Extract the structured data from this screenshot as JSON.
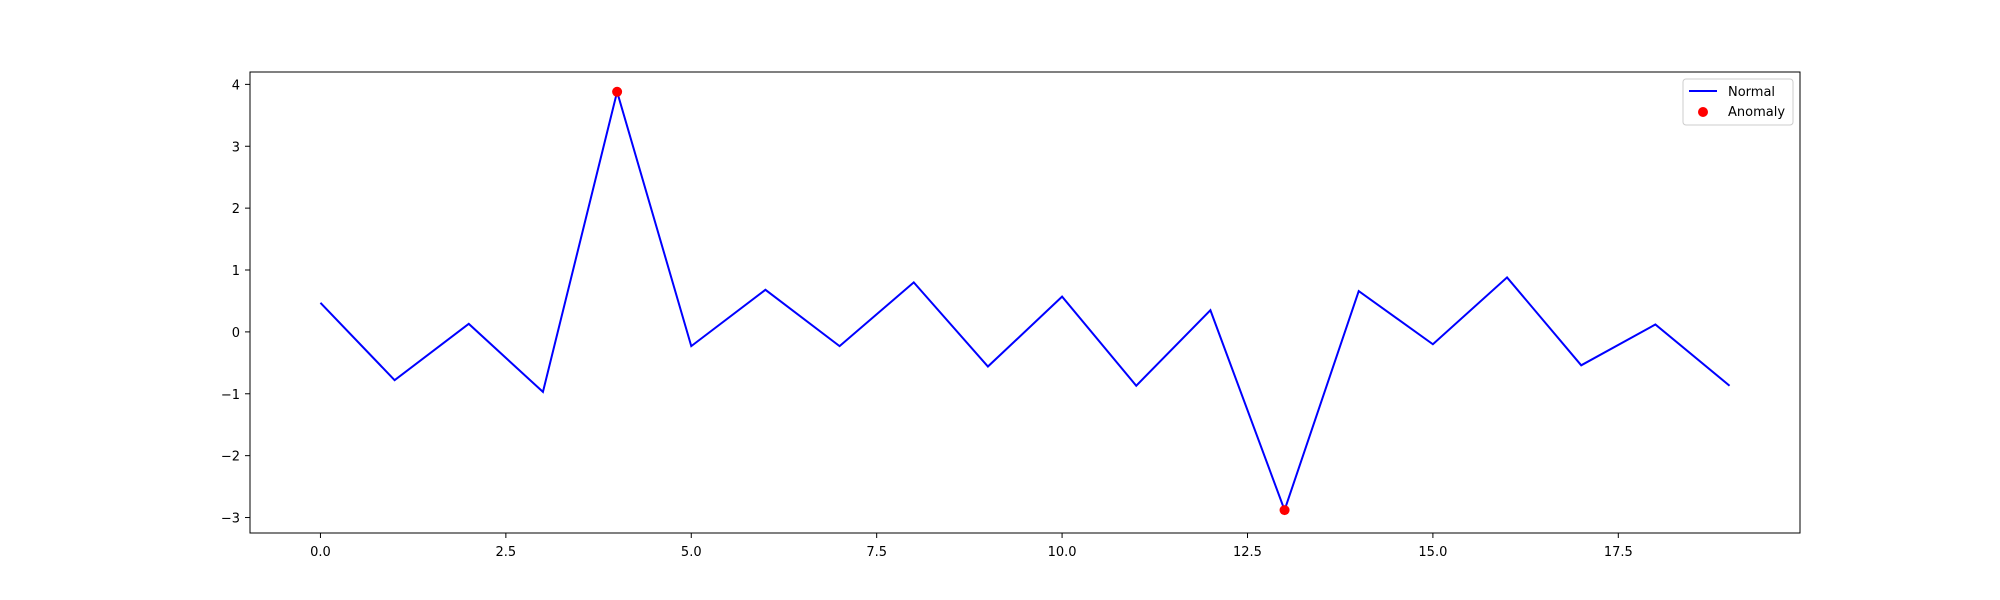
{
  "chart_data": {
    "type": "line",
    "title": "",
    "xlabel": "",
    "ylabel": "",
    "xlim": [
      -0.95,
      19.95
    ],
    "ylim": [
      -3.25,
      4.2
    ],
    "grid": false,
    "legend_position": "top-right",
    "xticks": [
      0.0,
      2.5,
      5.0,
      7.5,
      10.0,
      12.5,
      15.0,
      17.5
    ],
    "xtick_labels": [
      "0.0",
      "2.5",
      "5.0",
      "7.5",
      "10.0",
      "12.5",
      "15.0",
      "17.5"
    ],
    "yticks": [
      4,
      3,
      2,
      1,
      0,
      -1,
      -2,
      -3
    ],
    "ytick_labels": [
      "4",
      "3",
      "2",
      "1",
      "0",
      "−1",
      "−2",
      "−3"
    ],
    "series": [
      {
        "name": "Normal",
        "style": "line",
        "color": "#0000ff",
        "x": [
          0,
          1,
          2,
          3,
          4,
          5,
          6,
          7,
          8,
          9,
          10,
          11,
          12,
          13,
          14,
          15,
          16,
          17,
          18,
          19
        ],
        "y": [
          0.47,
          -0.78,
          0.13,
          -0.97,
          3.88,
          -0.23,
          0.68,
          -0.23,
          0.8,
          -0.56,
          0.57,
          -0.87,
          0.35,
          -2.88,
          0.66,
          -0.2,
          0.88,
          -0.54,
          0.12,
          -0.87
        ]
      },
      {
        "name": "Anomaly",
        "style": "scatter",
        "color": "#ff0000",
        "x": [
          4,
          13
        ],
        "y": [
          3.88,
          -2.88
        ]
      }
    ]
  }
}
